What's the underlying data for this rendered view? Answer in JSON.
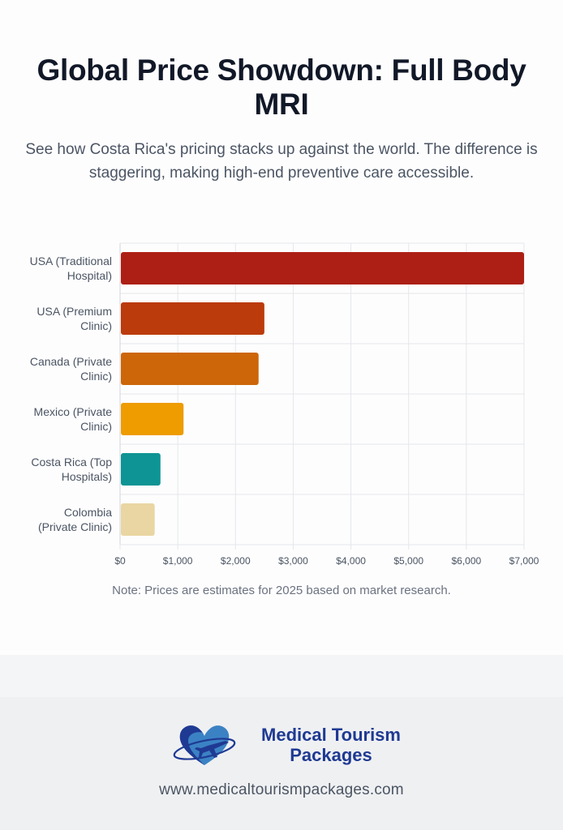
{
  "header": {
    "title": "Global Price Showdown: Full Body MRI",
    "subtitle": "See how Costa Rica's pricing stacks up against the world. The difference is staggering, making high-end preventive care accessible."
  },
  "chart_data": {
    "type": "bar",
    "orientation": "horizontal",
    "categories": [
      [
        "USA (Traditional",
        "Hospital)"
      ],
      [
        "USA (Premium",
        "Clinic)"
      ],
      [
        "Canada (Private",
        "Clinic)"
      ],
      [
        "Mexico (Private",
        "Clinic)"
      ],
      [
        "Costa Rica (Top",
        "Hospitals)"
      ],
      [
        "Colombia",
        "(Private Clinic)"
      ]
    ],
    "values": [
      7000,
      2500,
      2400,
      1100,
      700,
      600
    ],
    "colors": [
      "#ad1f14",
      "#bb3b0c",
      "#cc6608",
      "#ee9c00",
      "#0e9494",
      "#ead6a3"
    ],
    "xlim": [
      0,
      7000
    ],
    "xticks": [
      0,
      1000,
      2000,
      3000,
      4000,
      5000,
      6000,
      7000
    ],
    "xtick_labels": [
      "$0",
      "$1,000",
      "$2,000",
      "$3,000",
      "$4,000",
      "$5,000",
      "$6,000",
      "$7,000"
    ],
    "grid": true,
    "legend": "none"
  },
  "note": "Note: Prices are estimates for 2025 based on market research.",
  "footer": {
    "logo_line1": "Medical Tourism",
    "logo_line2": "Packages",
    "url": "www.medicaltourismpackages.com",
    "brand_color": "#1f3a93",
    "heart_color": "#3b82c4"
  }
}
